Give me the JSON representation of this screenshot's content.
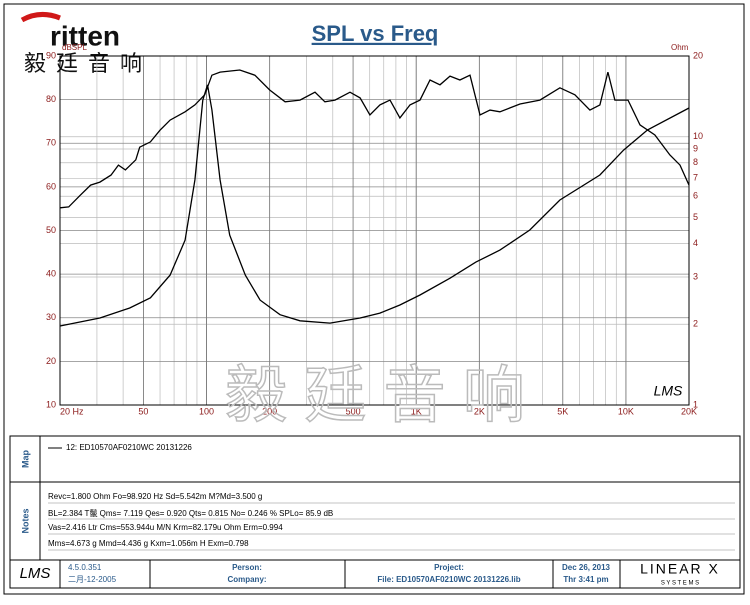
{
  "logo": {
    "brand": "ritten",
    "chinese": "毅廷音响"
  },
  "watermark": "毅 廷 音 响",
  "plot_logo": "LMS",
  "chart_data": {
    "type": "line",
    "title": "SPL vs Freq",
    "ylabel": "dBSPL",
    "y2label": "Ohm",
    "xscale": "log",
    "y2scale": "log",
    "grid": true,
    "xlim": [
      20,
      20000
    ],
    "xticks": [
      {
        "value": 20,
        "label": "20 Hz"
      },
      50,
      100,
      200,
      500,
      {
        "value": 1000,
        "label": "1K"
      },
      {
        "value": 2000,
        "label": "2K"
      },
      {
        "value": 5000,
        "label": "5K"
      },
      {
        "value": 10000,
        "label": "10K"
      },
      {
        "value": 20000,
        "label": "20K"
      }
    ],
    "ylim": [
      10,
      90
    ],
    "yticks": [
      10,
      20,
      30,
      40,
      50,
      60,
      70,
      80,
      90
    ],
    "y2lim": [
      1,
      20
    ],
    "y2ticks": [
      1,
      2,
      3,
      4,
      5,
      6,
      7,
      8,
      9,
      10,
      20
    ],
    "series": [
      {
        "color": "#000000",
        "x": [
          20,
          22,
          25,
          28,
          31,
          35,
          38,
          41,
          46,
          48,
          54,
          60,
          67,
          79,
          88,
          98,
          106,
          116,
          144,
          170,
          200,
          237,
          279,
          329,
          367,
          410,
          483,
          540,
          601,
          671,
          750,
          836,
          934,
          1042,
          1163,
          1298,
          1449,
          1616,
          1805,
          2014,
          2248,
          2508,
          2800,
          3125,
          3891,
          4845,
          5715,
          6735,
          7517,
          8207,
          8868,
          10232,
          11671,
          13750,
          16220,
          18110,
          20000
        ],
        "values": [
          55.2,
          55.4,
          58.1,
          60.4,
          61.1,
          62.7,
          65.0,
          63.9,
          66.2,
          69.1,
          70.3,
          73.0,
          75.3,
          77.2,
          78.8,
          81.1,
          85.6,
          86.3,
          86.8,
          85.6,
          82.2,
          79.5,
          79.9,
          81.7,
          79.5,
          79.9,
          81.7,
          80.4,
          76.5,
          78.8,
          79.9,
          75.8,
          78.8,
          79.9,
          84.5,
          83.4,
          85.4,
          84.5,
          85.6,
          76.5,
          77.6,
          77.2,
          78.1,
          79.0,
          79.9,
          82.7,
          81.1,
          77.6,
          78.8,
          86.3,
          79.9,
          79.9,
          74.2,
          71.9,
          67.3,
          65.0,
          60.4
        ]
      },
      {
        "color": "#000000",
        "axis": "y2",
        "x": [
          20,
          31,
          43,
          54,
          67,
          79,
          88,
          96,
          101,
          106,
          116,
          129,
          153,
          180,
          224,
          279,
          388,
          540,
          671,
          836,
          1042,
          1449,
          1925,
          2508,
          3480,
          4845,
          7517,
          9747,
          12660,
          20000
        ],
        "values": [
          1.97,
          2.11,
          2.3,
          2.51,
          3.05,
          4.12,
          6.9,
          13.7,
          15.6,
          12.6,
          6.9,
          4.3,
          3.05,
          2.46,
          2.17,
          2.06,
          2.02,
          2.11,
          2.2,
          2.36,
          2.57,
          2.97,
          3.41,
          3.78,
          4.49,
          5.81,
          7.2,
          8.92,
          10.6,
          12.8
        ]
      }
    ]
  },
  "map": {
    "label": "Map",
    "legend": "12: ED10570AF0210WC    20131226"
  },
  "notes": {
    "label": "Notes",
    "lines": [
      "Revc=1.800 Ohm  Fo=98.920 Hz  Sd=5.542m  M?Md=3.500 g",
      "BL=2.384 T鬛  Qms= 7.119  Qes= 0.920  Qts= 0.815  No= 0.246 %  SPLo= 85.9 dB",
      "Vas=2.416 Ltr  Cms=553.944u M/N  Krm=82.179u Ohm  Erm=0.994",
      "Mms=4.673 g  Mmd=4.436 g  Kxm=1.056m H  Exm=0.798"
    ]
  },
  "footer": {
    "logo": "LMS",
    "version": "4.5.0.351",
    "version_date": "二月-12-2005",
    "person": "Person:",
    "company": "Company:",
    "project": "Project:",
    "file": "File: ED10570AF0210WC  20131226.lib",
    "date": "Dec 26, 2013",
    "time": "Thr  3:41 pm",
    "brand": "LINEAR X",
    "brand_sub": "S Y S T E M S"
  }
}
